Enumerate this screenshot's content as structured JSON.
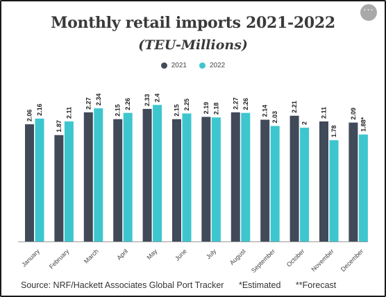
{
  "header": {
    "title": "Monthly retail imports 2021-2022",
    "subtitle": "(TEU-Millions)",
    "menu_icon": "more-horizontal-icon",
    "menu_glyph": "···"
  },
  "footer": {
    "source": "Source: NRF/Hackett Associates Global Port Tracker",
    "note_estimated": "*Estimated",
    "note_forecast": "**Forecast"
  },
  "colors": {
    "series_2021": "#414a59",
    "series_2022": "#3ec6cf",
    "menu_button": "#a9a9a9"
  },
  "chart_data": {
    "type": "bar",
    "title": "Monthly retail imports 2021-2022",
    "subtitle": "(TEU-Millions)",
    "xlabel": "",
    "ylabel": "",
    "ylim": [
      0,
      2.7
    ],
    "grid": false,
    "legend_position": "top-center",
    "categories": [
      "January",
      "February",
      "March",
      "April",
      "May",
      "June",
      "July",
      "August",
      "September",
      "October",
      "November",
      "December"
    ],
    "series": [
      {
        "name": "2021",
        "color": "#414a59",
        "values": [
          2.06,
          1.87,
          2.27,
          2.15,
          2.33,
          2.15,
          2.19,
          2.27,
          2.14,
          2.21,
          2.11,
          2.09
        ],
        "labels": [
          "2.06",
          "1.87",
          "2.27",
          "2.15",
          "2.33",
          "2.15",
          "2.19",
          "2.27",
          "2.14",
          "2.21",
          "2.11",
          "2.09"
        ]
      },
      {
        "name": "2022",
        "color": "#3ec6cf",
        "values": [
          2.16,
          2.11,
          2.34,
          2.26,
          2.4,
          2.25,
          2.18,
          2.26,
          2.03,
          2,
          1.78,
          1.88
        ],
        "labels": [
          "2.16",
          "2.11",
          "2.34",
          "2.26",
          "2.4",
          "2.25",
          "2.18",
          "2.26",
          "2.03",
          "2",
          "1.78",
          "1.88*"
        ]
      }
    ]
  }
}
